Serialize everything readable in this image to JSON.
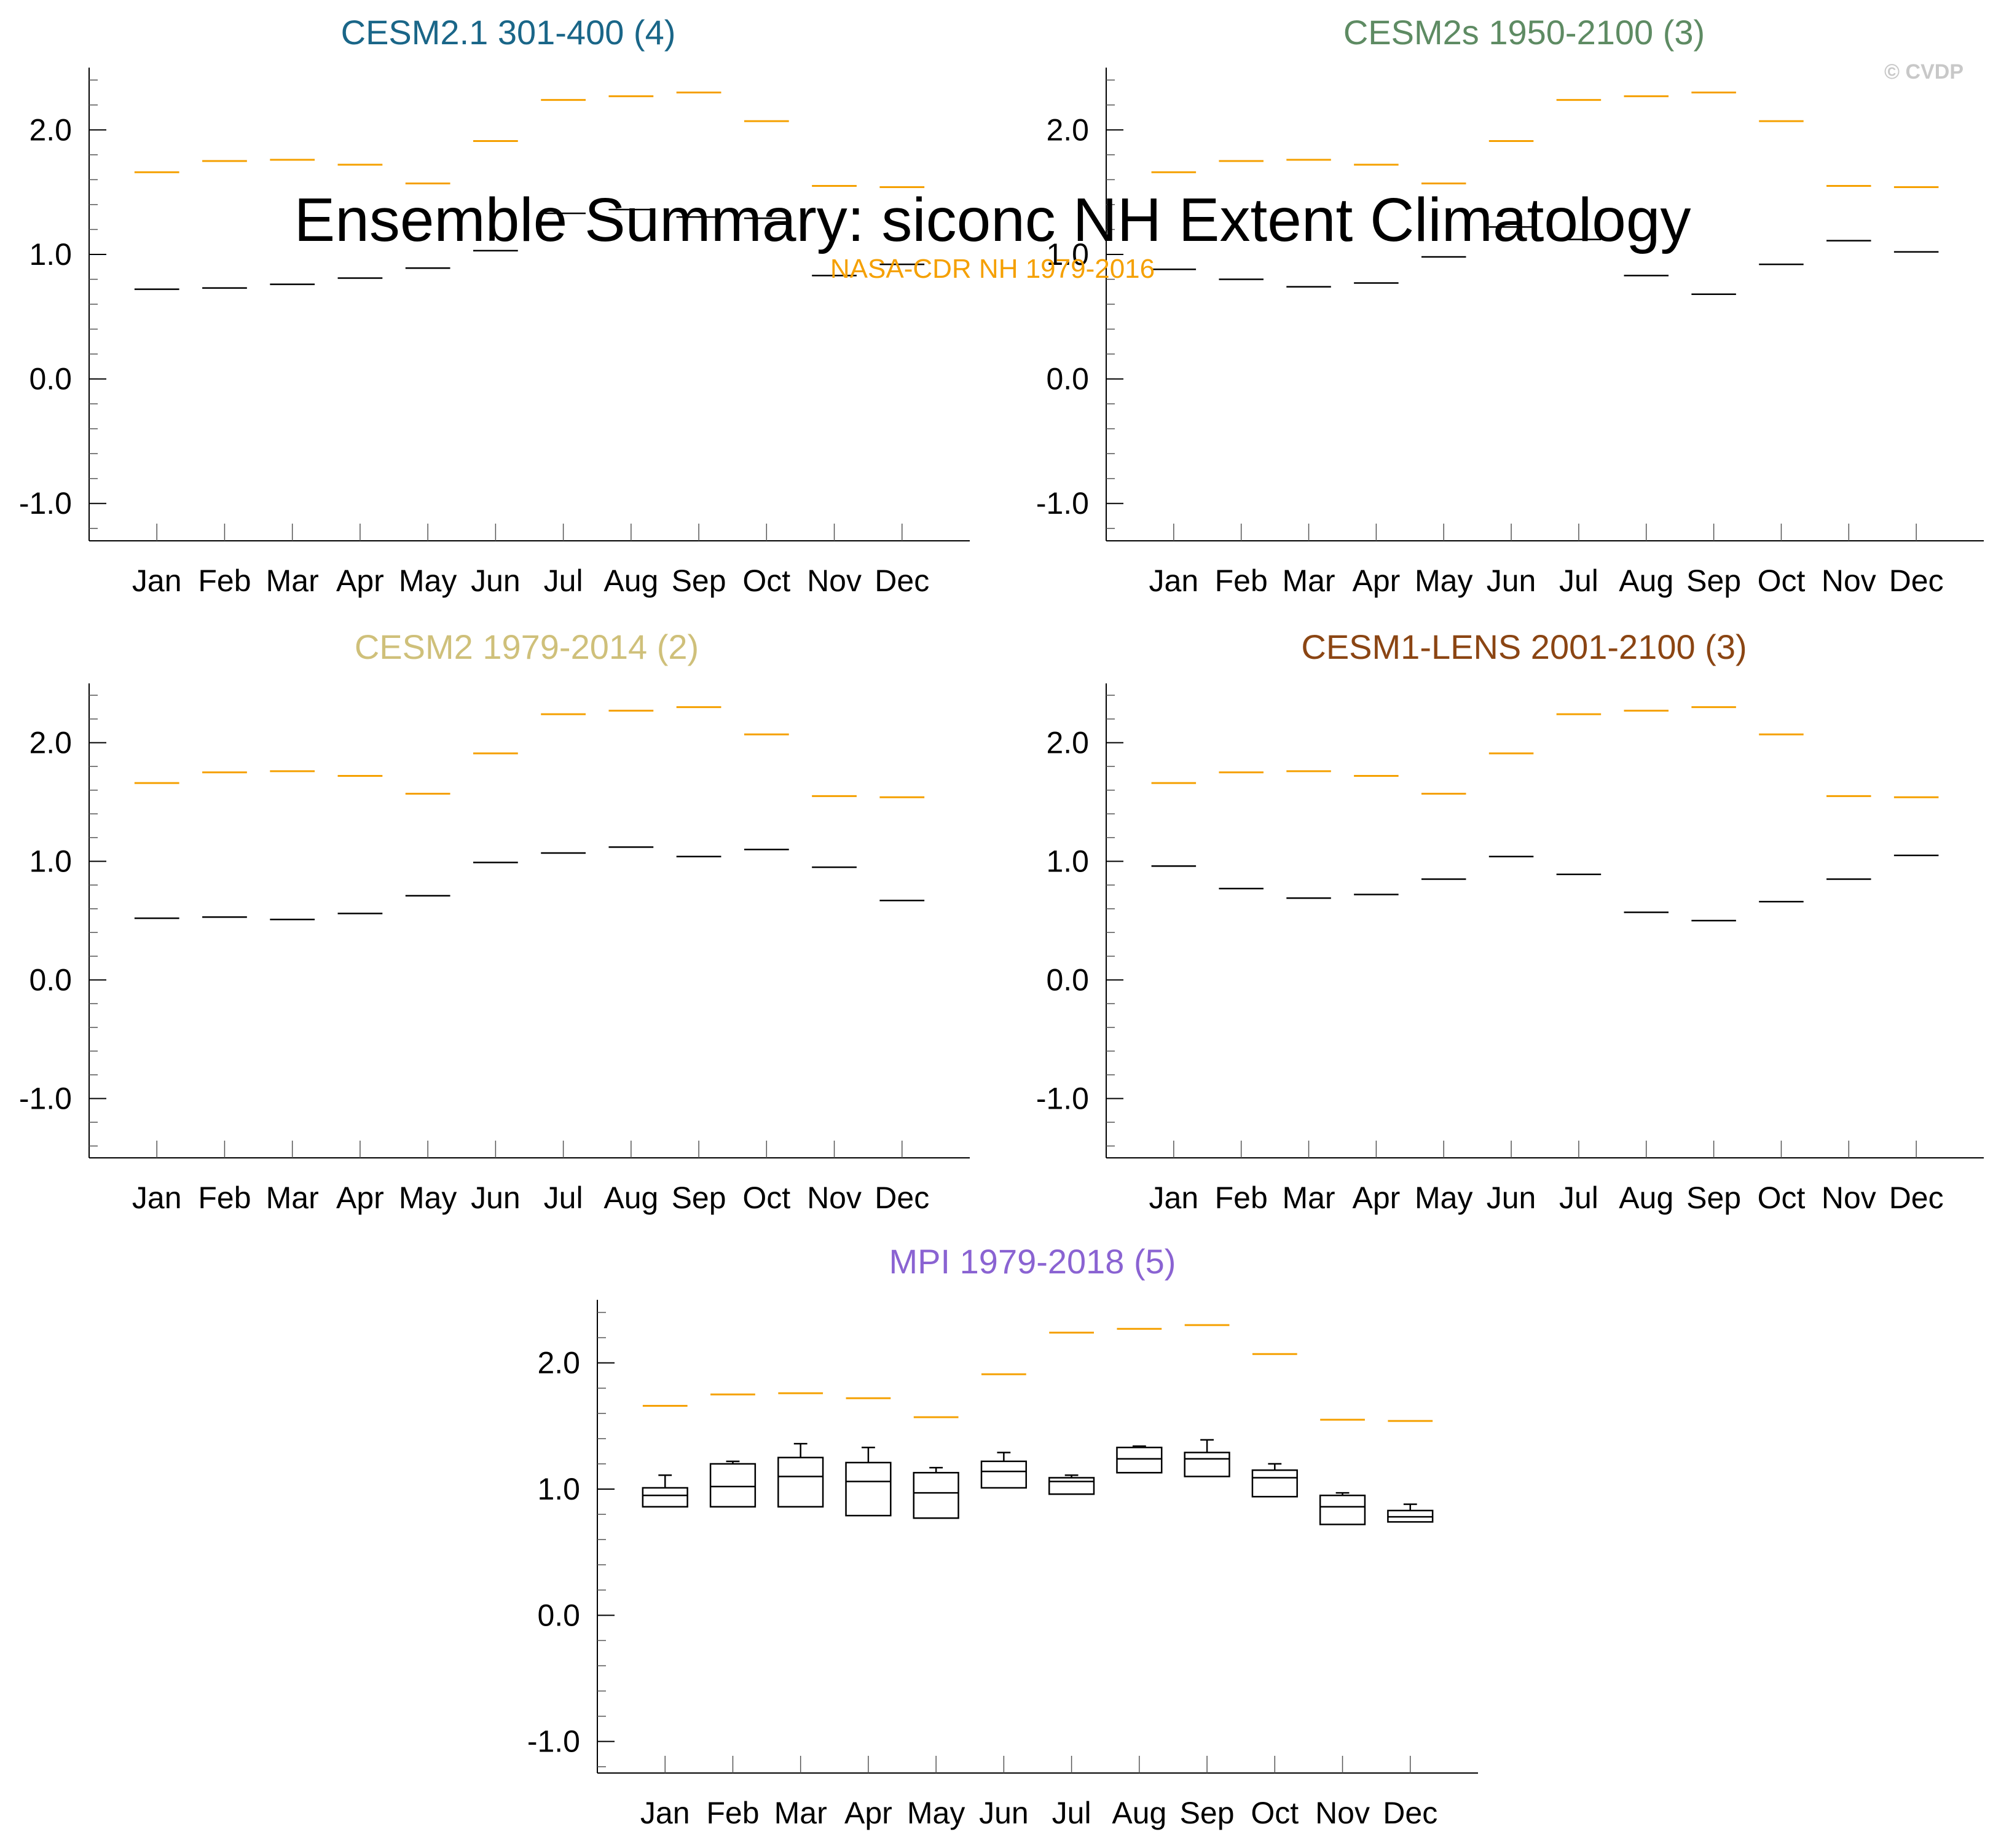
{
  "figure": {
    "title": "Ensemble Summary: siconc NH Extent Climatology",
    "reference_label": "NASA-CDR NH 1979-2016",
    "credit": "© CVDP"
  },
  "colors": {
    "reference": "#f5a000",
    "ensemble": "#000000",
    "axis": "#000000",
    "minor_tick": "#555555"
  },
  "chart_data": [
    {
      "type": "box",
      "title": "CESM2.1 301-400 (4)",
      "title_color": "#1a6688",
      "categories": [
        "Jan",
        "Feb",
        "Mar",
        "Apr",
        "May",
        "Jun",
        "Jul",
        "Aug",
        "Sep",
        "Oct",
        "Nov",
        "Dec"
      ],
      "ylim": [
        -1.3,
        2.5
      ],
      "yticks": [
        -1.0,
        0.0,
        1.0,
        2.0
      ],
      "ytick_labels": [
        "-1.0",
        "0.0",
        "1.0",
        "2.0"
      ],
      "reference": [
        1.66,
        1.75,
        1.76,
        1.72,
        1.57,
        1.91,
        2.24,
        2.27,
        2.3,
        2.07,
        1.55,
        1.54
      ],
      "ensemble": [
        {
          "min": 0.72,
          "q1": 0.72,
          "median": 0.72,
          "q3": 0.72,
          "max": 0.72
        },
        {
          "min": 0.73,
          "q1": 0.73,
          "median": 0.73,
          "q3": 0.73,
          "max": 0.73
        },
        {
          "min": 0.76,
          "q1": 0.76,
          "median": 0.76,
          "q3": 0.76,
          "max": 0.76
        },
        {
          "min": 0.81,
          "q1": 0.81,
          "median": 0.81,
          "q3": 0.81,
          "max": 0.81
        },
        {
          "min": 0.89,
          "q1": 0.89,
          "median": 0.89,
          "q3": 0.89,
          "max": 0.89
        },
        {
          "min": 1.03,
          "q1": 1.03,
          "median": 1.03,
          "q3": 1.03,
          "max": 1.03
        },
        {
          "min": 1.33,
          "q1": 1.33,
          "median": 1.33,
          "q3": 1.33,
          "max": 1.33
        },
        {
          "min": 1.36,
          "q1": 1.36,
          "median": 1.36,
          "q3": 1.36,
          "max": 1.36
        },
        {
          "min": 1.3,
          "q1": 1.3,
          "median": 1.3,
          "q3": 1.3,
          "max": 1.3
        },
        {
          "min": 1.29,
          "q1": 1.29,
          "median": 1.29,
          "q3": 1.29,
          "max": 1.29
        },
        {
          "min": 0.83,
          "q1": 0.83,
          "median": 0.83,
          "q3": 0.83,
          "max": 0.83
        },
        {
          "min": 0.92,
          "q1": 0.92,
          "median": 0.92,
          "q3": 0.92,
          "max": 0.92
        }
      ]
    },
    {
      "type": "box",
      "title": "CESM2s 1950-2100 (3)",
      "title_color": "#5e8b63",
      "categories": [
        "Jan",
        "Feb",
        "Mar",
        "Apr",
        "May",
        "Jun",
        "Jul",
        "Aug",
        "Sep",
        "Oct",
        "Nov",
        "Dec"
      ],
      "ylim": [
        -1.3,
        2.5
      ],
      "yticks": [
        -1.0,
        0.0,
        1.0,
        2.0
      ],
      "ytick_labels": [
        "-1.0",
        "0.0",
        "1.0",
        "2.0"
      ],
      "reference": [
        1.66,
        1.75,
        1.76,
        1.72,
        1.57,
        1.91,
        2.24,
        2.27,
        2.3,
        2.07,
        1.55,
        1.54
      ],
      "ensemble": [
        {
          "min": 0.88,
          "q1": 0.88,
          "median": 0.88,
          "q3": 0.88,
          "max": 0.88
        },
        {
          "min": 0.8,
          "q1": 0.8,
          "median": 0.8,
          "q3": 0.8,
          "max": 0.8
        },
        {
          "min": 0.74,
          "q1": 0.74,
          "median": 0.74,
          "q3": 0.74,
          "max": 0.74
        },
        {
          "min": 0.77,
          "q1": 0.77,
          "median": 0.77,
          "q3": 0.77,
          "max": 0.77
        },
        {
          "min": 0.98,
          "q1": 0.98,
          "median": 0.98,
          "q3": 0.98,
          "max": 0.98
        },
        {
          "min": 1.22,
          "q1": 1.22,
          "median": 1.22,
          "q3": 1.22,
          "max": 1.22
        },
        {
          "min": 1.12,
          "q1": 1.12,
          "median": 1.12,
          "q3": 1.12,
          "max": 1.12
        },
        {
          "min": 0.83,
          "q1": 0.83,
          "median": 0.83,
          "q3": 0.83,
          "max": 0.83
        },
        {
          "min": 0.68,
          "q1": 0.68,
          "median": 0.68,
          "q3": 0.68,
          "max": 0.68
        },
        {
          "min": 0.92,
          "q1": 0.92,
          "median": 0.92,
          "q3": 0.92,
          "max": 0.92
        },
        {
          "min": 1.11,
          "q1": 1.11,
          "median": 1.11,
          "q3": 1.11,
          "max": 1.11
        },
        {
          "min": 1.02,
          "q1": 1.02,
          "median": 1.02,
          "q3": 1.02,
          "max": 1.02
        }
      ]
    },
    {
      "type": "box",
      "title": "CESM2 1979-2014 (2)",
      "title_color": "#cfc07a",
      "categories": [
        "Jan",
        "Feb",
        "Mar",
        "Apr",
        "May",
        "Jun",
        "Jul",
        "Aug",
        "Sep",
        "Oct",
        "Nov",
        "Dec"
      ],
      "ylim": [
        -1.5,
        2.5
      ],
      "yticks": [
        -1.0,
        0.0,
        1.0,
        2.0
      ],
      "ytick_labels": [
        "-1.0",
        "0.0",
        "1.0",
        "2.0"
      ],
      "reference": [
        1.66,
        1.75,
        1.76,
        1.72,
        1.57,
        1.91,
        2.24,
        2.27,
        2.3,
        2.07,
        1.55,
        1.54
      ],
      "ensemble": [
        {
          "min": 0.52,
          "q1": 0.52,
          "median": 0.52,
          "q3": 0.52,
          "max": 0.52
        },
        {
          "min": 0.53,
          "q1": 0.53,
          "median": 0.53,
          "q3": 0.53,
          "max": 0.53
        },
        {
          "min": 0.51,
          "q1": 0.51,
          "median": 0.51,
          "q3": 0.51,
          "max": 0.51
        },
        {
          "min": 0.56,
          "q1": 0.56,
          "median": 0.56,
          "q3": 0.56,
          "max": 0.56
        },
        {
          "min": 0.71,
          "q1": 0.71,
          "median": 0.71,
          "q3": 0.71,
          "max": 0.71
        },
        {
          "min": 0.99,
          "q1": 0.99,
          "median": 0.99,
          "q3": 0.99,
          "max": 0.99
        },
        {
          "min": 1.07,
          "q1": 1.07,
          "median": 1.07,
          "q3": 1.07,
          "max": 1.07
        },
        {
          "min": 1.12,
          "q1": 1.12,
          "median": 1.12,
          "q3": 1.12,
          "max": 1.12
        },
        {
          "min": 1.04,
          "q1": 1.04,
          "median": 1.04,
          "q3": 1.04,
          "max": 1.04
        },
        {
          "min": 1.1,
          "q1": 1.1,
          "median": 1.1,
          "q3": 1.1,
          "max": 1.1
        },
        {
          "min": 0.95,
          "q1": 0.95,
          "median": 0.95,
          "q3": 0.95,
          "max": 0.95
        },
        {
          "min": 0.67,
          "q1": 0.67,
          "median": 0.67,
          "q3": 0.67,
          "max": 0.67
        }
      ]
    },
    {
      "type": "box",
      "title": "CESM1-LENS 2001-2100 (3)",
      "title_color": "#8b4513",
      "categories": [
        "Jan",
        "Feb",
        "Mar",
        "Apr",
        "May",
        "Jun",
        "Jul",
        "Aug",
        "Sep",
        "Oct",
        "Nov",
        "Dec"
      ],
      "ylim": [
        -1.5,
        2.5
      ],
      "yticks": [
        -1.0,
        0.0,
        1.0,
        2.0
      ],
      "ytick_labels": [
        "-1.0",
        "0.0",
        "1.0",
        "2.0"
      ],
      "reference": [
        1.66,
        1.75,
        1.76,
        1.72,
        1.57,
        1.91,
        2.24,
        2.27,
        2.3,
        2.07,
        1.55,
        1.54
      ],
      "ensemble": [
        {
          "min": 0.96,
          "q1": 0.96,
          "median": 0.96,
          "q3": 0.96,
          "max": 0.96
        },
        {
          "min": 0.77,
          "q1": 0.77,
          "median": 0.77,
          "q3": 0.77,
          "max": 0.77
        },
        {
          "min": 0.69,
          "q1": 0.69,
          "median": 0.69,
          "q3": 0.69,
          "max": 0.69
        },
        {
          "min": 0.72,
          "q1": 0.72,
          "median": 0.72,
          "q3": 0.72,
          "max": 0.72
        },
        {
          "min": 0.85,
          "q1": 0.85,
          "median": 0.85,
          "q3": 0.85,
          "max": 0.85
        },
        {
          "min": 1.04,
          "q1": 1.04,
          "median": 1.04,
          "q3": 1.04,
          "max": 1.04
        },
        {
          "min": 0.89,
          "q1": 0.89,
          "median": 0.89,
          "q3": 0.89,
          "max": 0.89
        },
        {
          "min": 0.57,
          "q1": 0.57,
          "median": 0.57,
          "q3": 0.57,
          "max": 0.57
        },
        {
          "min": 0.5,
          "q1": 0.5,
          "median": 0.5,
          "q3": 0.5,
          "max": 0.5
        },
        {
          "min": 0.66,
          "q1": 0.66,
          "median": 0.66,
          "q3": 0.66,
          "max": 0.66
        },
        {
          "min": 0.85,
          "q1": 0.85,
          "median": 0.85,
          "q3": 0.85,
          "max": 0.85
        },
        {
          "min": 1.05,
          "q1": 1.05,
          "median": 1.05,
          "q3": 1.05,
          "max": 1.05
        }
      ]
    },
    {
      "type": "box",
      "title": "MPI 1979-2018 (5)",
      "title_color": "#8a63d2",
      "categories": [
        "Jan",
        "Feb",
        "Mar",
        "Apr",
        "May",
        "Jun",
        "Jul",
        "Aug",
        "Sep",
        "Oct",
        "Nov",
        "Dec"
      ],
      "ylim": [
        -1.25,
        2.5
      ],
      "yticks": [
        -1.0,
        0.0,
        1.0,
        2.0
      ],
      "ytick_labels": [
        "-1.0",
        "0.0",
        "1.0",
        "2.0"
      ],
      "reference": [
        1.66,
        1.75,
        1.76,
        1.72,
        1.57,
        1.91,
        2.24,
        2.27,
        2.3,
        2.07,
        1.55,
        1.54
      ],
      "ensemble": [
        {
          "min": 0.86,
          "q1": 0.86,
          "median": 0.95,
          "q3": 1.01,
          "max": 1.11
        },
        {
          "min": 0.86,
          "q1": 0.86,
          "median": 1.02,
          "q3": 1.2,
          "max": 1.22
        },
        {
          "min": 0.86,
          "q1": 0.86,
          "median": 1.1,
          "q3": 1.25,
          "max": 1.36
        },
        {
          "min": 0.79,
          "q1": 0.79,
          "median": 1.06,
          "q3": 1.21,
          "max": 1.33
        },
        {
          "min": 0.77,
          "q1": 0.77,
          "median": 0.97,
          "q3": 1.13,
          "max": 1.17
        },
        {
          "min": 1.01,
          "q1": 1.01,
          "median": 1.14,
          "q3": 1.22,
          "max": 1.29
        },
        {
          "min": 0.96,
          "q1": 0.96,
          "median": 1.06,
          "q3": 1.09,
          "max": 1.11
        },
        {
          "min": 1.13,
          "q1": 1.13,
          "median": 1.24,
          "q3": 1.33,
          "max": 1.34
        },
        {
          "min": 1.1,
          "q1": 1.1,
          "median": 1.24,
          "q3": 1.29,
          "max": 1.39
        },
        {
          "min": 0.94,
          "q1": 0.94,
          "median": 1.09,
          "q3": 1.15,
          "max": 1.2
        },
        {
          "min": 0.72,
          "q1": 0.72,
          "median": 0.86,
          "q3": 0.95,
          "max": 0.97
        },
        {
          "min": 0.74,
          "q1": 0.74,
          "median": 0.78,
          "q3": 0.83,
          "max": 0.88
        }
      ]
    }
  ]
}
